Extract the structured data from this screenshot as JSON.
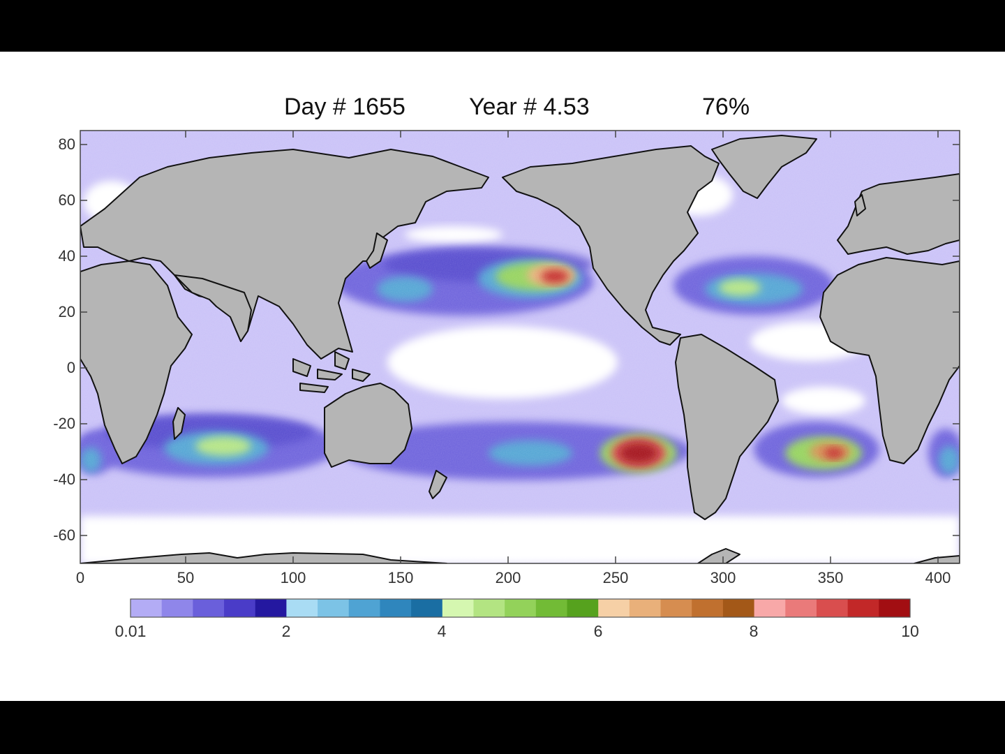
{
  "title": {
    "day": "Day # 1655",
    "year": "Year # 4.53",
    "percent": "76%"
  },
  "axes": {
    "y_ticks": [
      "80",
      "60",
      "40",
      "20",
      "0",
      "-20",
      "-40",
      "-60"
    ],
    "x_ticks": [
      "0",
      "50",
      "100",
      "150",
      "200",
      "250",
      "300",
      "350",
      "400"
    ]
  },
  "colorbar": {
    "tick_labels": [
      "0.01",
      "2",
      "4",
      "6",
      "8",
      "10"
    ],
    "colors": [
      "#b3acf5",
      "#8f86ea",
      "#6a5fdb",
      "#4a3cc8",
      "#2418a0",
      "#a9dcf4",
      "#7cc3e6",
      "#4fa3d3",
      "#2f86bd",
      "#1a6ea3",
      "#d5f7b0",
      "#b3e482",
      "#93d25a",
      "#72bb36",
      "#56a21e",
      "#f6d0a6",
      "#e9b07a",
      "#d68d50",
      "#c0702f",
      "#a35818",
      "#f8a8a8",
      "#ea7a7a",
      "#d94e4e",
      "#c22828",
      "#a20e12"
    ]
  },
  "map": {
    "land_color": "#b5b5b5",
    "ocean_base_color": "#c8c0f7",
    "clear_color": "#ffffff"
  }
}
